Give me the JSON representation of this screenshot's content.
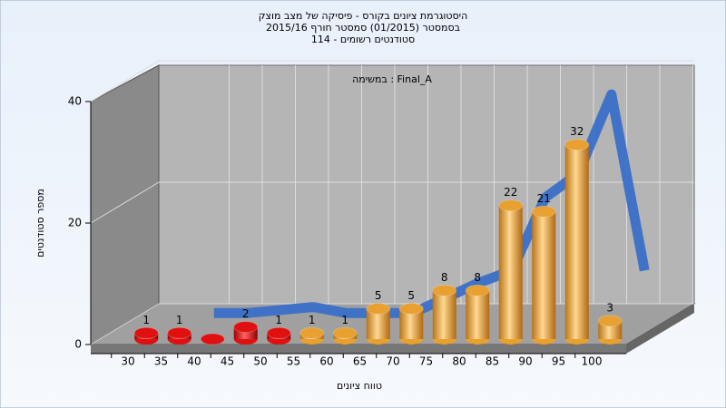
{
  "chart_data": {
    "type": "bar",
    "title": [
      "היסטוגרמת ציונים בקורס - פיסיקה של מצב מוצק",
      "בסמסטר  (01/2015)  סמסטר חורף 2015/16",
      "114 - סטודנטים רשומים"
    ],
    "annotation": "במשימה : Final_A",
    "x_label": "טווח ציונים",
    "y_label": "מספר סטודנטים",
    "categories": [
      "30",
      "35",
      "40",
      "45",
      "50",
      "55",
      "60",
      "65",
      "70",
      "75",
      "80",
      "85",
      "90",
      "95",
      "100"
    ],
    "values": [
      1,
      1,
      0,
      2,
      1,
      1,
      1,
      5,
      5,
      8,
      8,
      22,
      21,
      32,
      3
    ],
    "colors": [
      "#e01010",
      "#e01010",
      "#e01010",
      "#e01010",
      "#e01010",
      "#e8a030",
      "#e8a030",
      "#e8a030",
      "#e8a030",
      "#e8a030",
      "#e8a030",
      "#e8a030",
      "#e8a030",
      "#e8a030",
      "#e8a030"
    ],
    "trend": {
      "color": "#3a70c8",
      "values": [
        null,
        1,
        1,
        1.5,
        2,
        1,
        1,
        1,
        3.5,
        6,
        8,
        20,
        24,
        37,
        8
      ]
    },
    "ylim": [
      0,
      40
    ],
    "yticks": [
      0,
      20,
      40
    ],
    "grid": true
  }
}
